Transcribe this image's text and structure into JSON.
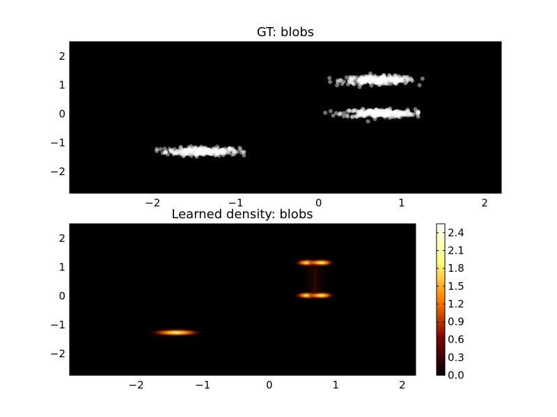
{
  "figure": {
    "background": "#ffffff",
    "panel_background": "#000000"
  },
  "chart_data": [
    {
      "type": "scatter",
      "title": "GT: blobs",
      "xlabel": "",
      "ylabel": "",
      "xlim": [
        -3.0,
        2.2
      ],
      "ylim": [
        -2.75,
        2.5
      ],
      "xticks": [
        -2,
        -1,
        0,
        1,
        2
      ],
      "yticks": [
        2,
        1,
        0,
        -1,
        -2
      ],
      "xtick_labels": [
        "−2",
        "−1",
        "0",
        "1",
        "2"
      ],
      "ytick_labels": [
        "2",
        "1",
        "0",
        "−1",
        "−2"
      ],
      "grid": false,
      "point_color": "#ffffff",
      "clusters": [
        {
          "center": [
            -1.4,
            -1.3
          ],
          "spread": [
            0.22,
            0.07
          ],
          "x_range": [
            -1.95,
            -0.9
          ],
          "y_range": [
            -1.7,
            -0.95
          ]
        },
        {
          "center": [
            0.72,
            1.17
          ],
          "spread": [
            0.22,
            0.07
          ],
          "x_range": [
            0.13,
            1.25
          ],
          "y_range": [
            0.9,
            1.55
          ]
        },
        {
          "center": [
            0.72,
            0.02
          ],
          "spread": [
            0.22,
            0.07
          ],
          "x_range": [
            0.0,
            1.2
          ],
          "y_range": [
            -0.45,
            0.45
          ]
        }
      ]
    },
    {
      "type": "heatmap",
      "title": "Learned density: blobs",
      "xlabel": "",
      "ylabel": "",
      "xlim": [
        -3.0,
        2.2
      ],
      "ylim": [
        -2.75,
        2.5
      ],
      "xticks": [
        -2,
        -1,
        0,
        1,
        2
      ],
      "yticks": [
        2,
        1,
        0,
        -1,
        -2
      ],
      "xtick_labels": [
        "−2",
        "−1",
        "0",
        "1",
        "2"
      ],
      "ytick_labels": [
        "2",
        "1",
        "0",
        "−1",
        "−2"
      ],
      "colormap": "afmhot",
      "colorbar": {
        "min": 0.0,
        "max": 2.55,
        "ticks": [
          0.0,
          0.3,
          0.6,
          0.9,
          1.2,
          1.5,
          1.8,
          2.1,
          2.4
        ],
        "tick_labels": [
          "0.0",
          "0.3",
          "0.6",
          "0.9",
          "1.2",
          "1.5",
          "1.8",
          "2.1",
          "2.4"
        ]
      },
      "peaks": [
        {
          "center": [
            -1.4,
            -1.27
          ],
          "spread": [
            0.14,
            0.05
          ],
          "peak_value": 2.5
        },
        {
          "center": [
            0.58,
            1.15
          ],
          "spread": [
            0.07,
            0.05
          ],
          "peak_value": 2.0
        },
        {
          "center": [
            0.78,
            1.15
          ],
          "spread": [
            0.07,
            0.05
          ],
          "peak_value": 2.0
        },
        {
          "center": [
            0.58,
            0.02
          ],
          "spread": [
            0.07,
            0.05
          ],
          "peak_value": 2.0
        },
        {
          "center": [
            0.78,
            0.02
          ],
          "spread": [
            0.07,
            0.05
          ],
          "peak_value": 2.0
        }
      ]
    }
  ]
}
